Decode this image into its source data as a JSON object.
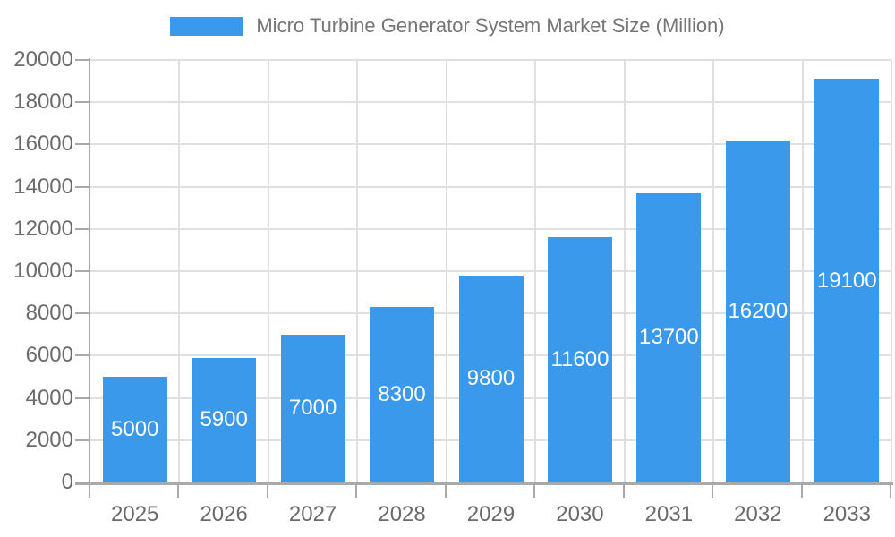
{
  "legend": {
    "label": "Micro Turbine Generator System Market Size (Million)"
  },
  "chart_data": {
    "type": "bar",
    "title": "Micro Turbine Generator System Market Size (Million)",
    "categories": [
      "2025",
      "2026",
      "2027",
      "2028",
      "2029",
      "2030",
      "2031",
      "2032",
      "2033"
    ],
    "values": [
      5000,
      5900,
      7000,
      8300,
      9800,
      11600,
      13700,
      16200,
      19100
    ],
    "xlabel": "",
    "ylabel": "",
    "ylim": [
      0,
      20000
    ],
    "ytick_step": 2000,
    "yticks": [
      0,
      2000,
      4000,
      6000,
      8000,
      10000,
      12000,
      14000,
      16000,
      18000,
      20000
    ],
    "grid": true,
    "legend_position": "top",
    "bar_color": "#3b99ec",
    "bar_label_color": "#ffffff",
    "grid_color": "#e0e0e0",
    "axis_color": "#a9a9a9",
    "tick_label_color": "#6b6b6b"
  }
}
